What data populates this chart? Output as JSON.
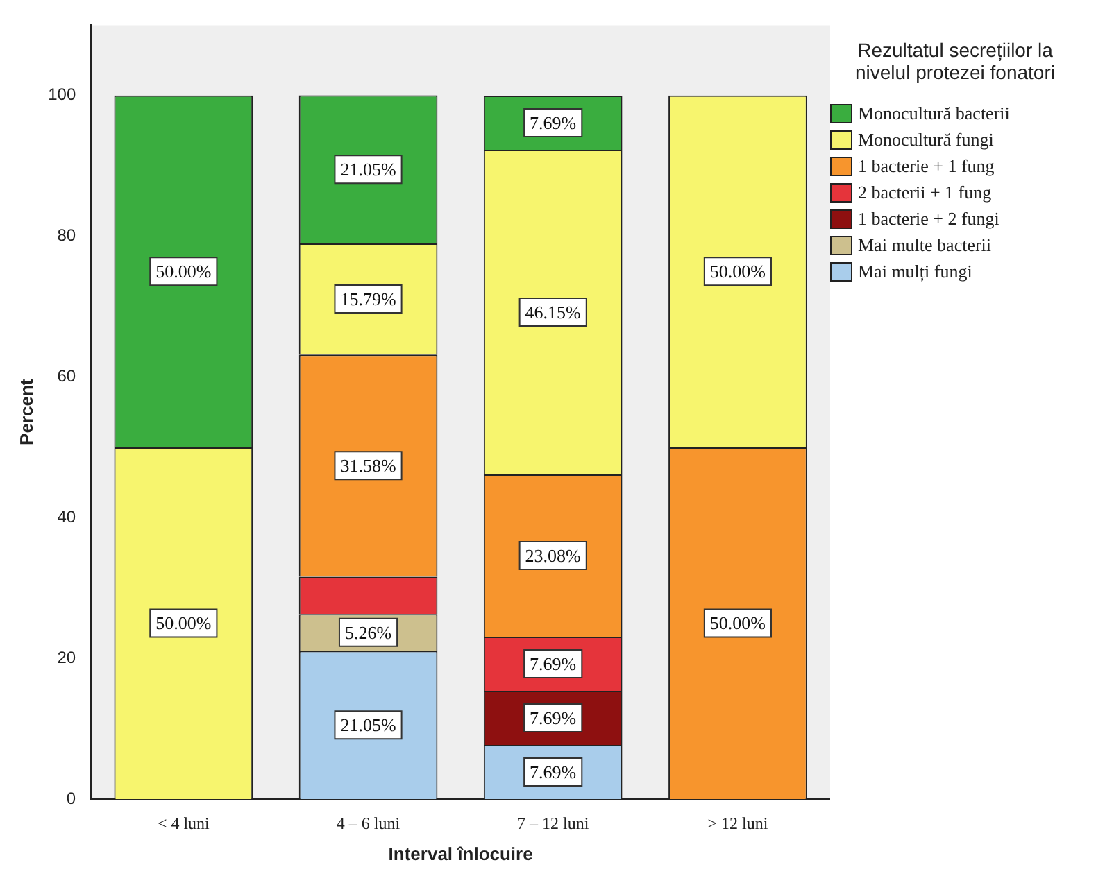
{
  "chart_data": {
    "type": "bar",
    "stacked": true,
    "xlabel": "Interval înlocuire",
    "ylabel": "Percent",
    "legend_title": "Rezultatul secrețiilor la nivelul protezei fonatori",
    "legend": "right",
    "categories": [
      "< 4 luni",
      "4 – 6 luni",
      "7 – 12 luni",
      "> 12 luni"
    ],
    "ylim": [
      0,
      110
    ],
    "yticks": [
      0,
      20,
      40,
      60,
      80,
      100
    ],
    "grid": false,
    "series": [
      {
        "name": "Mai mulți fungi",
        "color": "#a9cdeb",
        "values": [
          null,
          21.05,
          7.69,
          null
        ],
        "value_labels": [
          null,
          "21.05%",
          "7.69%",
          null
        ]
      },
      {
        "name": "Mai multe bacterii",
        "color": "#cdc08e",
        "values": [
          null,
          5.26,
          null,
          null
        ],
        "value_labels": [
          null,
          "5.26%",
          null,
          null
        ]
      },
      {
        "name": "1 bacterie + 2 fungi",
        "color": "#8e1010",
        "values": [
          null,
          null,
          7.69,
          null
        ],
        "value_labels": [
          null,
          null,
          "7.69%",
          null
        ]
      },
      {
        "name": "2 bacterii + 1 fung",
        "color": "#e5343b",
        "values": [
          null,
          5.3,
          7.69,
          null
        ],
        "value_labels": [
          null,
          null,
          "7.69%",
          null
        ]
      },
      {
        "name": "1 bacterie + 1 fung",
        "color": "#f7952d",
        "values": [
          null,
          31.58,
          23.08,
          50
        ],
        "value_labels": [
          null,
          "31.58%",
          "23.08%",
          "50.00%"
        ]
      },
      {
        "name": "Monocultură fungi",
        "color": "#f7f56e",
        "values": [
          50,
          15.79,
          46.15,
          50
        ],
        "value_labels": [
          "50.00%",
          "15.79%",
          "46.15%",
          "50.00%"
        ]
      },
      {
        "name": "Monocultură bacterii",
        "color": "#3aad3f",
        "values": [
          50,
          21.05,
          7.69,
          null
        ],
        "value_labels": [
          "50.00%",
          "21.05%",
          "7.69%",
          null
        ]
      }
    ]
  }
}
